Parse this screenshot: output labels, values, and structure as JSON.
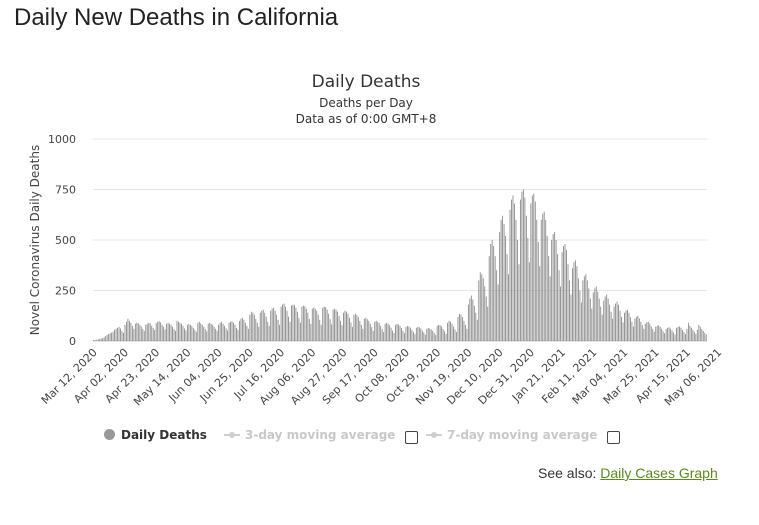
{
  "page": {
    "title": "Daily New Deaths in California"
  },
  "see_also": {
    "label": "See also:",
    "link_text": "Daily Cases Graph"
  },
  "legend": {
    "items": [
      {
        "label": "Daily Deaths",
        "active": true
      },
      {
        "label": "3-day moving average",
        "active": false
      },
      {
        "label": "7-day moving average",
        "active": false
      }
    ]
  },
  "colors": {
    "bar": "#8c8c8c",
    "grid": "#e6e6e6",
    "link": "#5a8a1e",
    "inactive_legend": "#c8c8c8"
  },
  "chart_data": {
    "type": "bar",
    "title": "Daily Deaths",
    "subtitle": "Deaths per Day",
    "subtitle2": "Data as of 0:00 GMT+8",
    "ylabel": "Novel Coronavirus Daily Deaths",
    "xlabel": "",
    "ylim": [
      0,
      1000
    ],
    "y_ticks": [
      0,
      250,
      500,
      750,
      1000
    ],
    "x_tick_labels": [
      "Mar 12, 2020",
      "Apr 02, 2020",
      "Apr 23, 2020",
      "May 14, 2020",
      "Jun 04, 2020",
      "Jun 25, 2020",
      "Jul 16, 2020",
      "Aug 06, 2020",
      "Aug 27, 2020",
      "Sep 17, 2020",
      "Oct 08, 2020",
      "Oct 29, 2020",
      "Nov 19, 2020",
      "Dec 10, 2020",
      "Dec 31, 2020",
      "Jan 21, 2021",
      "Feb 11, 2021",
      "Mar 04, 2021",
      "Mar 25, 2021",
      "Apr 15, 2021",
      "May 06, 2021"
    ],
    "grid": true,
    "legend_position": "bottom",
    "series": [
      {
        "name": "Daily Deaths",
        "values": [
          [
            5,
            4,
            6,
            8,
            10,
            12,
            15
          ],
          [
            18,
            25,
            30,
            35,
            38,
            42,
            45
          ],
          [
            55,
            60,
            65,
            70,
            62,
            50,
            40
          ],
          [
            80,
            95,
            110,
            100,
            90,
            75,
            60
          ],
          [
            85,
            90,
            88,
            80,
            72,
            60,
            50
          ],
          [
            80,
            85,
            90,
            88,
            75,
            65,
            55
          ],
          [
            88,
            95,
            98,
            92,
            80,
            70,
            58
          ],
          [
            85,
            90,
            85,
            80,
            70,
            60,
            50
          ],
          [
            100,
            95,
            90,
            85,
            75,
            62,
            52
          ],
          [
            80,
            85,
            80,
            75,
            65,
            55,
            45
          ],
          [
            90,
            95,
            88,
            80,
            70,
            60,
            48
          ],
          [
            85,
            90,
            85,
            80,
            70,
            60,
            50
          ],
          [
            80,
            90,
            95,
            85,
            75,
            62,
            52
          ],
          [
            90,
            95,
            98,
            90,
            80,
            65,
            55
          ],
          [
            100,
            110,
            115,
            105,
            90,
            75,
            60
          ],
          [
            130,
            145,
            140,
            130,
            110,
            90,
            70
          ],
          [
            140,
            150,
            155,
            140,
            120,
            95,
            75
          ],
          [
            150,
            160,
            165,
            150,
            130,
            105,
            80
          ],
          [
            170,
            180,
            185,
            170,
            150,
            120,
            95
          ],
          [
            175,
            180,
            178,
            165,
            145,
            115,
            90
          ],
          [
            170,
            175,
            172,
            160,
            140,
            110,
            85
          ],
          [
            160,
            165,
            160,
            150,
            130,
            105,
            80
          ],
          [
            165,
            170,
            168,
            155,
            135,
            108,
            82
          ],
          [
            155,
            160,
            155,
            145,
            125,
            100,
            78
          ],
          [
            140,
            150,
            145,
            135,
            115,
            92,
            70
          ],
          [
            130,
            135,
            128,
            118,
            100,
            80,
            60
          ],
          [
            110,
            115,
            108,
            100,
            85,
            68,
            50
          ],
          [
            95,
            100,
            95,
            88,
            75,
            60,
            45
          ],
          [
            85,
            90,
            85,
            78,
            66,
            52,
            40
          ],
          [
            80,
            85,
            82,
            75,
            64,
            50,
            38
          ],
          [
            70,
            75,
            72,
            66,
            56,
            45,
            34
          ],
          [
            65,
            70,
            68,
            62,
            52,
            42,
            32
          ],
          [
            60,
            65,
            62,
            58,
            50,
            40,
            30
          ],
          [
            75,
            80,
            78,
            72,
            60,
            48,
            36
          ],
          [
            90,
            100,
            95,
            85,
            72,
            58,
            44
          ],
          [
            120,
            135,
            130,
            118,
            100,
            80,
            60
          ],
          [
            180,
            210,
            225,
            205,
            175,
            140,
            105
          ],
          [
            300,
            340,
            330,
            310,
            270,
            220,
            170
          ],
          [
            420,
            480,
            500,
            470,
            420,
            350,
            280
          ],
          [
            540,
            600,
            620,
            580,
            520,
            430,
            330
          ],
          [
            650,
            700,
            720,
            680,
            600,
            500,
            380
          ],
          [
            700,
            740,
            750,
            710,
            620,
            510,
            390
          ],
          [
            680,
            720,
            730,
            690,
            600,
            490,
            370
          ],
          [
            600,
            630,
            640,
            600,
            520,
            420,
            320
          ],
          [
            500,
            530,
            540,
            500,
            430,
            350,
            270
          ],
          [
            440,
            470,
            480,
            450,
            380,
            300,
            230
          ],
          [
            360,
            390,
            400,
            370,
            310,
            250,
            190
          ],
          [
            300,
            320,
            330,
            300,
            260,
            210,
            160
          ],
          [
            240,
            260,
            270,
            245,
            210,
            170,
            130
          ],
          [
            200,
            220,
            230,
            210,
            180,
            145,
            110
          ],
          [
            170,
            185,
            195,
            180,
            150,
            120,
            92
          ],
          [
            140,
            150,
            155,
            140,
            118,
            95,
            72
          ],
          [
            110,
            120,
            125,
            112,
            95,
            78,
            60
          ],
          [
            85,
            92,
            95,
            86,
            73,
            60,
            46
          ],
          [
            70,
            75,
            78,
            70,
            60,
            48,
            38
          ],
          [
            60,
            65,
            68,
            62,
            52,
            42,
            32
          ],
          [
            65,
            70,
            72,
            66,
            55,
            44,
            34
          ],
          [
            60,
            90,
            75,
            66,
            55,
            45,
            35
          ],
          [
            55,
            80,
            70,
            60,
            50,
            40,
            32
          ]
        ]
      }
    ]
  }
}
